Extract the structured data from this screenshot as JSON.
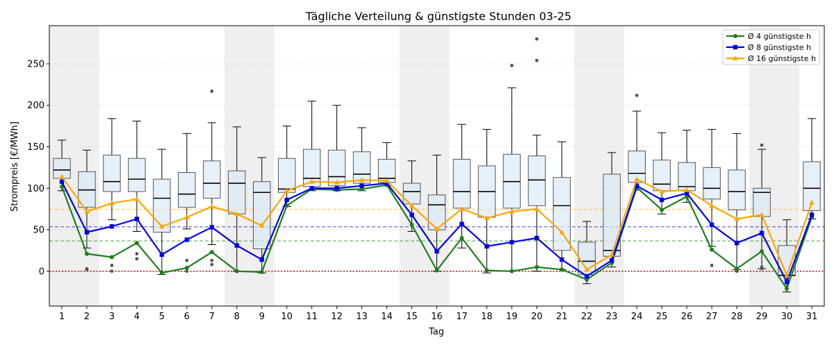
{
  "chart_data": {
    "type": "box",
    "title": "Tägliche Verteilung & günstigste Stunden 03-25",
    "xlabel": "Tag",
    "ylabel": "Strompreis [€/MWh]",
    "ylim": [
      -42,
      296
    ],
    "yticks": [
      0,
      50,
      100,
      150,
      200,
      250
    ],
    "categories": [
      "1",
      "2",
      "3",
      "4",
      "5",
      "6",
      "7",
      "8",
      "9",
      "10",
      "11",
      "12",
      "13",
      "14",
      "15",
      "16",
      "17",
      "18",
      "19",
      "20",
      "21",
      "22",
      "23",
      "24",
      "25",
      "26",
      "27",
      "28",
      "29",
      "30",
      "31"
    ],
    "weekend_days": [
      1,
      2,
      8,
      9,
      15,
      16,
      22,
      23,
      29,
      30
    ],
    "grid": "horizontal dotted",
    "boxes": [
      {
        "day": 1,
        "wlo": 97,
        "q1": 112,
        "med": 122,
        "q3": 136,
        "whi": 158,
        "fliers": []
      },
      {
        "day": 2,
        "wlo": 28,
        "q1": 77,
        "med": 98,
        "q3": 120,
        "whi": 146,
        "fliers": [
          2,
          3
        ]
      },
      {
        "day": 3,
        "wlo": 62,
        "q1": 96,
        "med": 108,
        "q3": 140,
        "whi": 184,
        "fliers": [
          0,
          7
        ]
      },
      {
        "day": 4,
        "wlo": 48,
        "q1": 96,
        "med": 111,
        "q3": 136,
        "whi": 181,
        "fliers": [
          15,
          21
        ]
      },
      {
        "day": 5,
        "wlo": -4,
        "q1": 47,
        "med": 88,
        "q3": 111,
        "whi": 147,
        "fliers": []
      },
      {
        "day": 6,
        "wlo": 51,
        "q1": 77,
        "med": 93,
        "q3": 119,
        "whi": 166,
        "fliers": [
          0,
          13
        ]
      },
      {
        "day": 7,
        "wlo": 32,
        "q1": 88,
        "med": 106,
        "q3": 133,
        "whi": 179,
        "fliers": [
          8,
          13,
          217
        ]
      },
      {
        "day": 8,
        "wlo": 0,
        "q1": 69,
        "med": 106,
        "q3": 121,
        "whi": 174,
        "fliers": []
      },
      {
        "day": 9,
        "wlo": -2,
        "q1": 27,
        "med": 95,
        "q3": 108,
        "whi": 137,
        "fliers": []
      },
      {
        "day": 10,
        "wlo": 78,
        "q1": 95,
        "med": 99,
        "q3": 136,
        "whi": 175,
        "fliers": []
      },
      {
        "day": 11,
        "wlo": 97,
        "q1": 102,
        "med": 112,
        "q3": 147,
        "whi": 205,
        "fliers": []
      },
      {
        "day": 12,
        "wlo": 97,
        "q1": 103,
        "med": 114,
        "q3": 146,
        "whi": 200,
        "fliers": []
      },
      {
        "day": 13,
        "wlo": 97,
        "q1": 106,
        "med": 117,
        "q3": 144,
        "whi": 173,
        "fliers": []
      },
      {
        "day": 14,
        "wlo": 103,
        "q1": 107,
        "med": 112,
        "q3": 135,
        "whi": 155,
        "fliers": []
      },
      {
        "day": 15,
        "wlo": 48,
        "q1": 81,
        "med": 96,
        "q3": 106,
        "whi": 133,
        "fliers": []
      },
      {
        "day": 16,
        "wlo": 0,
        "q1": 50,
        "med": 80,
        "q3": 92,
        "whi": 140,
        "fliers": []
      },
      {
        "day": 17,
        "wlo": 28,
        "q1": 76,
        "med": 96,
        "q3": 135,
        "whi": 177,
        "fliers": []
      },
      {
        "day": 18,
        "wlo": -2,
        "q1": 65,
        "med": 96,
        "q3": 127,
        "whi": 171,
        "fliers": []
      },
      {
        "day": 19,
        "wlo": 0,
        "q1": 76,
        "med": 108,
        "q3": 141,
        "whi": 221,
        "fliers": [
          248
        ]
      },
      {
        "day": 20,
        "wlo": 0,
        "q1": 79,
        "med": 110,
        "q3": 139,
        "whi": 164,
        "fliers": [
          254,
          280
        ]
      },
      {
        "day": 21,
        "wlo": 2,
        "q1": 25,
        "med": 79,
        "q3": 113,
        "whi": 156,
        "fliers": []
      },
      {
        "day": 22,
        "wlo": -15,
        "q1": -4,
        "med": 12,
        "q3": 35,
        "whi": 60,
        "fliers": []
      },
      {
        "day": 23,
        "wlo": 5,
        "q1": 18,
        "med": 25,
        "q3": 117,
        "whi": 143,
        "fliers": []
      },
      {
        "day": 24,
        "wlo": 98,
        "q1": 107,
        "med": 118,
        "q3": 145,
        "whi": 193,
        "fliers": [
          212
        ]
      },
      {
        "day": 25,
        "wlo": 69,
        "q1": 97,
        "med": 105,
        "q3": 134,
        "whi": 167,
        "fliers": []
      },
      {
        "day": 26,
        "wlo": 83,
        "q1": 97,
        "med": 102,
        "q3": 131,
        "whi": 170,
        "fliers": []
      },
      {
        "day": 27,
        "wlo": 30,
        "q1": 87,
        "med": 100,
        "q3": 125,
        "whi": 171,
        "fliers": [
          7
        ]
      },
      {
        "day": 28,
        "wlo": 2,
        "q1": 74,
        "med": 96,
        "q3": 122,
        "whi": 166,
        "fliers": [
          0,
          1
        ]
      },
      {
        "day": 29,
        "wlo": 3,
        "q1": 66,
        "med": 95,
        "q3": 100,
        "whi": 147,
        "fliers": [
          3,
          5,
          152
        ]
      },
      {
        "day": 30,
        "wlo": -25,
        "q1": -5,
        "med": -5,
        "q3": 31,
        "whi": 62,
        "fliers": []
      },
      {
        "day": 31,
        "wlo": 63,
        "q1": 73,
        "med": 100,
        "q3": 132,
        "whi": 184,
        "fliers": []
      }
    ],
    "series": [
      {
        "name": "Ø 4 günstigste h",
        "color": "#1a7f1a",
        "marker": "circle",
        "values": [
          102,
          21,
          17,
          34,
          -2,
          4,
          23,
          0,
          -1,
          79,
          99,
          98,
          99,
          104,
          56,
          1,
          40,
          1,
          0,
          5,
          2,
          -10,
          10,
          101,
          74,
          90,
          26,
          3,
          24,
          -21,
          65
        ],
        "mean": 36.5
      },
      {
        "name": "Ø 8 günstigste h",
        "color": "#0000ee",
        "marker": "square",
        "values": [
          108,
          47,
          54,
          63,
          20,
          38,
          53,
          31,
          14,
          86,
          100,
          100,
          103,
          106,
          68,
          24,
          57,
          30,
          35,
          40,
          14,
          -6,
          13,
          103,
          86,
          94,
          56,
          34,
          46,
          -13,
          68
        ],
        "mean": 53.5
      },
      {
        "name": "Ø 16 günstigste h",
        "color": "#ffa500",
        "marker": "triangle",
        "values": [
          114,
          72,
          82,
          87,
          54,
          65,
          78,
          69,
          55,
          97,
          108,
          107,
          110,
          109,
          79,
          51,
          75,
          64,
          72,
          75,
          47,
          2,
          20,
          111,
          96,
          98,
          79,
          63,
          68,
          -5,
          83
        ],
        "mean": 74.5
      }
    ],
    "legend_position": "top-right"
  }
}
